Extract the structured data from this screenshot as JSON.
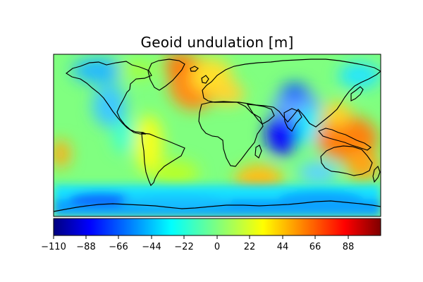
{
  "title": "Geoid undulation [m]",
  "map": {
    "projection": "equirectangular",
    "field": "geoid undulation",
    "units": "m",
    "features": [
      {
        "name": "North Atlantic high",
        "sign": "positive",
        "approx_value": 60
      },
      {
        "name": "Indian Ocean low",
        "sign": "negative",
        "approx_value": -105
      },
      {
        "name": "Western Pacific high",
        "sign": "positive",
        "approx_value": 80
      },
      {
        "name": "Antarctica low",
        "sign": "negative",
        "approx_value": -60
      }
    ]
  },
  "colorbar": {
    "colormap": "jet",
    "min": -110,
    "max": 110,
    "tick_labels": [
      "−110",
      "−88",
      "−66",
      "−44",
      "−22",
      "0",
      "22",
      "44",
      "66",
      "88"
    ]
  }
}
